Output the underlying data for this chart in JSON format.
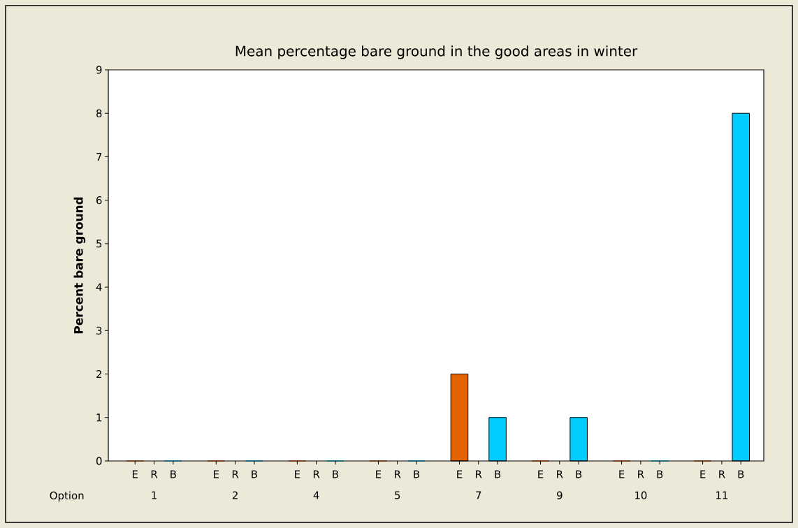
{
  "chart_data": {
    "type": "bar",
    "title": "Mean percentage bare ground in the good areas in winter",
    "xlabel": "Option",
    "ylabel": "Percent bare ground",
    "categories": [
      "1",
      "2",
      "4",
      "5",
      "7",
      "9",
      "10",
      "11"
    ],
    "series": [
      {
        "name": "E",
        "color": "#e36400",
        "values": [
          0,
          0,
          0,
          0,
          2,
          0,
          0,
          0
        ]
      },
      {
        "name": "R",
        "values": [
          0,
          0,
          0,
          0,
          0,
          0,
          0,
          0
        ]
      },
      {
        "name": "B",
        "color": "#00ccff",
        "values": [
          0,
          0,
          0,
          0,
          1,
          1,
          0,
          8
        ]
      }
    ],
    "ylim": [
      0,
      9
    ],
    "yticks": [
      0,
      1,
      2,
      3,
      4,
      5,
      6,
      7,
      8,
      9
    ],
    "grid": false,
    "legend": "bottom"
  }
}
